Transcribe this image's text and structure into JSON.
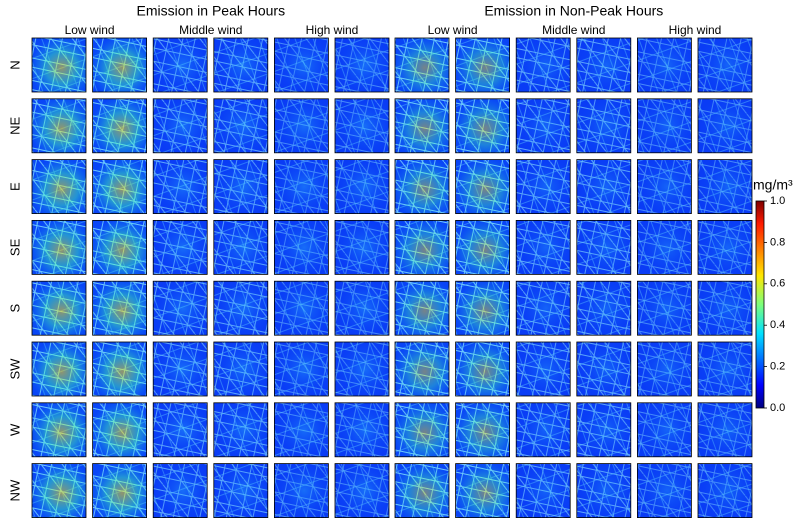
{
  "groups": [
    {
      "title": "Emission in Peak Hours",
      "winds": [
        "Low wind",
        "Middle wind",
        "High wind"
      ]
    },
    {
      "title": "Emission in Non-Peak Hours",
      "winds": [
        "Low wind",
        "Middle wind",
        "High wind"
      ]
    }
  ],
  "directions": [
    "N",
    "NE",
    "E",
    "SE",
    "S",
    "SW",
    "W",
    "NW"
  ],
  "colorbar": {
    "label": "mg/m³",
    "lim": [
      0,
      1
    ],
    "ticks": [
      {
        "value": 0,
        "label": "0.0"
      },
      0.2,
      0.4,
      0.6,
      0.8,
      {
        "value": 1,
        "label": "1.0"
      }
    ]
  }
}
